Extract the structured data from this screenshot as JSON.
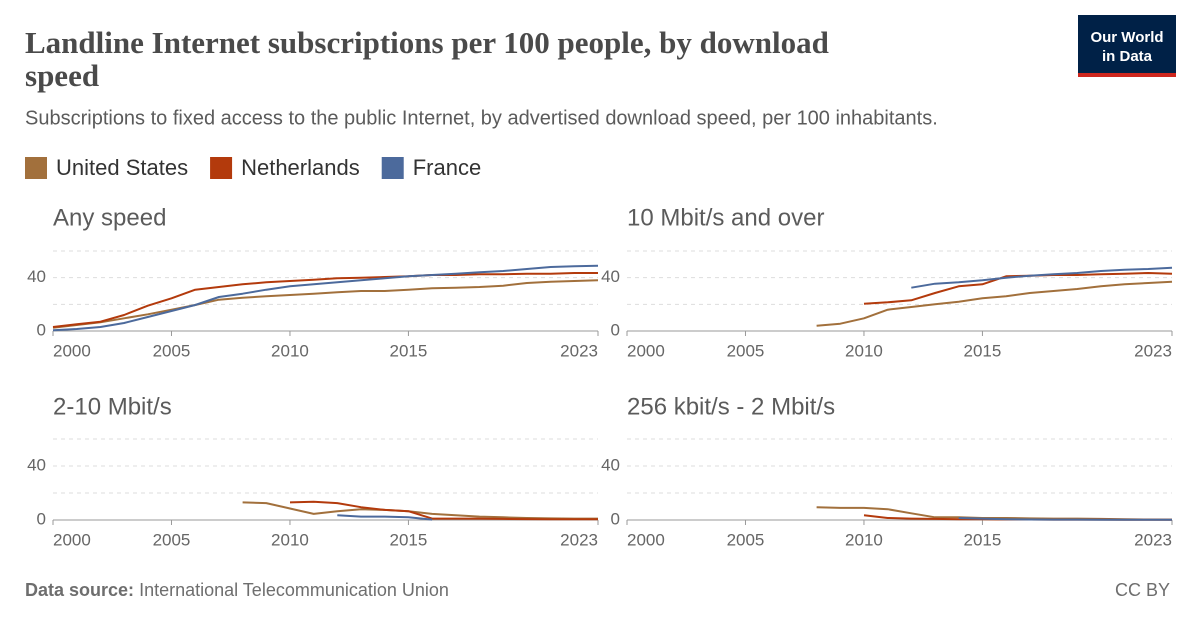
{
  "title": "Landline Internet subscriptions per 100 people, by download speed",
  "subtitle": "Subscriptions to fixed access to the public Internet, by advertised download speed, per 100 inhabitants.",
  "logo": [
    "Our World",
    "in Data"
  ],
  "source_label": "Data source:",
  "source": "International Telecommunication Union",
  "license": "CC BY",
  "chart_data": [
    {
      "type": "line",
      "title": "Any speed",
      "x": [
        2000,
        2001,
        2002,
        2003,
        2004,
        2005,
        2006,
        2007,
        2008,
        2009,
        2010,
        2011,
        2012,
        2013,
        2014,
        2015,
        2016,
        2017,
        2018,
        2019,
        2020,
        2021,
        2022,
        2023
      ],
      "series": [
        {
          "name": "United States",
          "color": "#a2703c",
          "values": [
            2.5,
            4.5,
            6.5,
            9.5,
            12.5,
            16,
            19.5,
            23.5,
            25,
            26,
            27,
            28,
            29,
            30,
            30,
            31,
            32,
            32.5,
            33,
            34,
            36,
            37,
            37.5,
            38
          ]
        },
        {
          "name": "Netherlands",
          "color": "#b33a0c",
          "values": [
            3,
            5,
            7,
            12,
            19,
            24.5,
            31,
            33,
            35,
            36.5,
            37.5,
            38.5,
            39.5,
            40,
            40.5,
            41,
            42,
            42,
            42.5,
            42.5,
            43,
            43,
            43.5,
            43.5
          ]
        },
        {
          "name": "France",
          "color": "#4c6a9c",
          "values": [
            0.5,
            1.5,
            3,
            6,
            10.5,
            15,
            19.5,
            25.5,
            28,
            31,
            33.5,
            35,
            36.5,
            38,
            39.5,
            41,
            42,
            43,
            44,
            45,
            46.5,
            48,
            48.5,
            49
          ]
        }
      ],
      "xlim": [
        2000,
        2023
      ],
      "xticks": [
        2000,
        2005,
        2010,
        2015,
        2023
      ],
      "ylim": [
        0,
        60
      ],
      "yticks": [
        0,
        40
      ],
      "ygrid": [
        0,
        20,
        40,
        60
      ]
    },
    {
      "type": "line",
      "title": "10 Mbit/s and over",
      "x": [
        2000,
        2001,
        2002,
        2003,
        2004,
        2005,
        2006,
        2007,
        2008,
        2009,
        2010,
        2011,
        2012,
        2013,
        2014,
        2015,
        2016,
        2017,
        2018,
        2019,
        2020,
        2021,
        2022,
        2023
      ],
      "series": [
        {
          "name": "United States",
          "color": "#a2703c",
          "values": [
            null,
            null,
            null,
            null,
            null,
            null,
            null,
            null,
            4,
            5.5,
            9.5,
            16,
            18,
            20,
            22,
            24.5,
            26,
            28.5,
            30,
            31.5,
            33.5,
            35,
            36,
            37
          ]
        },
        {
          "name": "Netherlands",
          "color": "#b33a0c",
          "values": [
            null,
            null,
            null,
            null,
            null,
            null,
            null,
            null,
            null,
            null,
            20.5,
            21.5,
            23,
            28.5,
            33.5,
            35,
            41,
            41.5,
            42,
            42,
            42.5,
            43,
            43.5,
            43
          ]
        },
        {
          "name": "France",
          "color": "#4c6a9c",
          "values": [
            null,
            null,
            null,
            null,
            null,
            null,
            null,
            null,
            null,
            null,
            null,
            null,
            32.5,
            35.5,
            36.5,
            38,
            40,
            41.5,
            42.5,
            43.5,
            45,
            46,
            46.5,
            47.5
          ]
        }
      ],
      "xlim": [
        2000,
        2023
      ],
      "xticks": [
        2000,
        2005,
        2010,
        2015,
        2023
      ],
      "ylim": [
        0,
        60
      ],
      "yticks": [
        0,
        40
      ],
      "ygrid": [
        0,
        20,
        40,
        60
      ]
    },
    {
      "type": "line",
      "title": "2-10 Mbit/s",
      "x": [
        2000,
        2001,
        2002,
        2003,
        2004,
        2005,
        2006,
        2007,
        2008,
        2009,
        2010,
        2011,
        2012,
        2013,
        2014,
        2015,
        2016,
        2017,
        2018,
        2019,
        2020,
        2021,
        2022,
        2023
      ],
      "series": [
        {
          "name": "United States",
          "color": "#a2703c",
          "values": [
            null,
            null,
            null,
            null,
            null,
            null,
            null,
            null,
            13,
            12.5,
            8.5,
            4.5,
            6.5,
            8,
            7.5,
            6.5,
            4.5,
            3.5,
            2.5,
            2,
            1.5,
            1.2,
            1,
            1
          ]
        },
        {
          "name": "Netherlands",
          "color": "#b33a0c",
          "values": [
            null,
            null,
            null,
            null,
            null,
            null,
            null,
            null,
            null,
            null,
            13,
            13.5,
            12.5,
            9.5,
            7.5,
            6.5,
            1,
            1,
            1,
            0.8,
            0.7,
            0.6,
            0.5,
            0.5
          ]
        },
        {
          "name": "France",
          "color": "#4c6a9c",
          "values": [
            null,
            null,
            null,
            null,
            null,
            null,
            null,
            null,
            null,
            null,
            null,
            null,
            3.5,
            2.5,
            2.5,
            2,
            0.3,
            null,
            null,
            null,
            null,
            null,
            null,
            null
          ]
        }
      ],
      "xlim": [
        2000,
        2023
      ],
      "xticks": [
        2000,
        2005,
        2010,
        2015,
        2023
      ],
      "ylim": [
        0,
        60
      ],
      "yticks": [
        0,
        40
      ],
      "ygrid": [
        0,
        20,
        40,
        60
      ]
    },
    {
      "type": "line",
      "title": "256 kbit/s - 2 Mbit/s",
      "x": [
        2000,
        2001,
        2002,
        2003,
        2004,
        2005,
        2006,
        2007,
        2008,
        2009,
        2010,
        2011,
        2012,
        2013,
        2014,
        2015,
        2016,
        2017,
        2018,
        2019,
        2020,
        2021,
        2022,
        2023
      ],
      "series": [
        {
          "name": "United States",
          "color": "#a2703c",
          "values": [
            null,
            null,
            null,
            null,
            null,
            null,
            null,
            null,
            9.5,
            9,
            9,
            8,
            5,
            2,
            2,
            1.5,
            1.5,
            1.2,
            1,
            1,
            0.8,
            0.5,
            0.4,
            0.3
          ]
        },
        {
          "name": "Netherlands",
          "color": "#b33a0c",
          "values": [
            null,
            null,
            null,
            null,
            null,
            null,
            null,
            null,
            null,
            null,
            3.5,
            1.5,
            1,
            0.8,
            0.5,
            0.5,
            0.4,
            0.4,
            0.3,
            0.3,
            0.3,
            0.2,
            0.2,
            0.2
          ]
        },
        {
          "name": "France",
          "color": "#4c6a9c",
          "values": [
            null,
            null,
            null,
            null,
            null,
            null,
            null,
            null,
            null,
            null,
            null,
            null,
            null,
            null,
            1.5,
            1,
            0.5,
            0.4,
            0.3,
            0.3,
            0.2,
            0.2,
            0.2,
            0.2
          ]
        }
      ],
      "xlim": [
        2000,
        2023
      ],
      "xticks": [
        2000,
        2005,
        2010,
        2015,
        2023
      ],
      "ylim": [
        0,
        60
      ],
      "yticks": [
        0,
        40
      ],
      "ygrid": [
        0,
        20,
        40,
        60
      ]
    }
  ]
}
